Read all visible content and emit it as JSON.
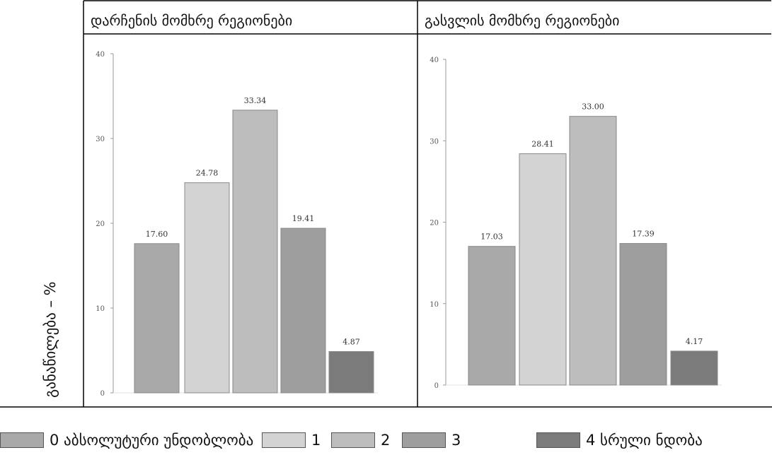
{
  "ylabel": "განაწილება – %",
  "legend": {
    "items": [
      {
        "label": "0 აბსოლუტური უნდობლობა",
        "color": "#a9a9a9"
      },
      {
        "label": "1",
        "color": "#d3d3d3"
      },
      {
        "label": "2",
        "color": "#bdbdbd"
      },
      {
        "label": "3",
        "color": "#9e9e9e"
      },
      {
        "label": "4 სრული ნდობა",
        "color": "#7b7b7b"
      }
    ]
  },
  "chart_data": [
    {
      "type": "bar",
      "title": "დარჩენის მომხრე რეგიონები",
      "categories": [
        "0",
        "1",
        "2",
        "3",
        "4"
      ],
      "values": [
        17.6,
        24.78,
        33.34,
        19.41,
        4.87
      ],
      "value_labels": [
        "17.60",
        "24.78",
        "33.34",
        "19.41",
        "4.87"
      ],
      "colors": [
        "#a9a9a9",
        "#d3d3d3",
        "#bdbdbd",
        "#9e9e9e",
        "#7b7b7b"
      ],
      "ylabel": "განაწილება – %",
      "ylim": [
        0,
        40
      ],
      "yticks": [
        "0",
        "10",
        "20",
        "30",
        "40"
      ]
    },
    {
      "type": "bar",
      "title": "გასვლის მომხრე რეგიონები",
      "categories": [
        "0",
        "1",
        "2",
        "3",
        "4"
      ],
      "values": [
        17.03,
        28.41,
        33.0,
        17.39,
        4.17
      ],
      "value_labels": [
        "17.03",
        "28.41",
        "33.00",
        "17.39",
        "4.17"
      ],
      "colors": [
        "#a9a9a9",
        "#d3d3d3",
        "#bdbdbd",
        "#9e9e9e",
        "#7b7b7b"
      ],
      "ylabel": "განაწილება – %",
      "ylim": [
        0,
        40
      ],
      "yticks": [
        "0",
        "10",
        "20",
        "30",
        "40"
      ]
    }
  ]
}
